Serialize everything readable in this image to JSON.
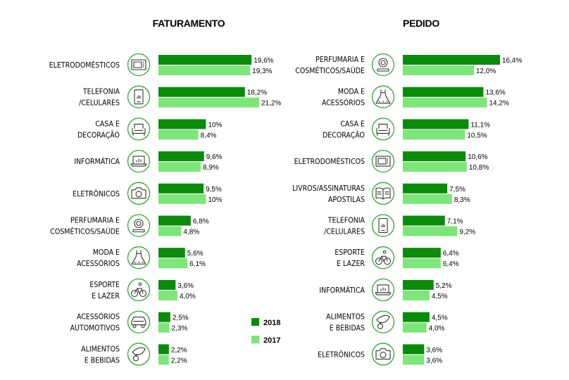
{
  "colors": {
    "y2018": "#0b8a0b",
    "y2017": "#7ee57a",
    "icon": "#2fa82f"
  },
  "legend": [
    {
      "label": "2018",
      "key": "y2018"
    },
    {
      "label": "2017",
      "key": "y2017"
    }
  ],
  "chart_data": [
    {
      "type": "bar",
      "title": "FATURAMENTO",
      "series_names": [
        "2018",
        "2017"
      ],
      "categories": [
        {
          "label": [
            "ELETRODOMÉSTICOS"
          ],
          "icon": "microwave-icon",
          "values": [
            19.6,
            19.3
          ],
          "text": [
            "19,6%",
            "19,3%"
          ]
        },
        {
          "label": [
            "TELEFONIA",
            "/CELULARES"
          ],
          "icon": "smartphone-icon",
          "values": [
            18.2,
            21.2
          ],
          "text": [
            "18,2%",
            "21,2%"
          ]
        },
        {
          "label": [
            "CASA E",
            "DECORAÇÃO"
          ],
          "icon": "armchair-icon",
          "values": [
            10,
            8.4
          ],
          "text": [
            "10%",
            "8,4%"
          ]
        },
        {
          "label": [
            "INFORMÁTICA"
          ],
          "icon": "laptop-icon",
          "values": [
            9.6,
            8.9
          ],
          "text": [
            "9,6%",
            "8,9%"
          ]
        },
        {
          "label": [
            "ELETRÔNICOS"
          ],
          "icon": "camera-icon",
          "values": [
            9.5,
            10
          ],
          "text": [
            "9,5%",
            "10%"
          ]
        },
        {
          "label": [
            "PERFUMARIA E",
            "COSMÉTICOS/SAÚDE"
          ],
          "icon": "cosmetics-icon",
          "values": [
            6.8,
            4.8
          ],
          "text": [
            "6,8%",
            "4,8%"
          ]
        },
        {
          "label": [
            "MODA E",
            "ACESSÓRIOS"
          ],
          "icon": "dress-icon",
          "values": [
            5.6,
            6.1
          ],
          "text": [
            "5,6%",
            "6,1%"
          ]
        },
        {
          "label": [
            "ESPORTE",
            "E LAZER"
          ],
          "icon": "bicycle-icon",
          "values": [
            3.6,
            4.0
          ],
          "text": [
            "3,6%",
            "4,0%"
          ]
        },
        {
          "label": [
            "ACESSÓRIOS",
            "AUTOMOTIVOS"
          ],
          "icon": "car-icon",
          "values": [
            2.5,
            2.3
          ],
          "text": [
            "2,5%",
            "2,3%"
          ]
        },
        {
          "label": [
            "ALIMENTOS",
            "E BEBIDAS"
          ],
          "icon": "food-icon",
          "values": [
            2.2,
            2.2
          ],
          "text": [
            "2,2%",
            "2,2%"
          ]
        }
      ],
      "xlim": [
        0,
        21.2
      ]
    },
    {
      "type": "bar",
      "title": "PEDIDO",
      "series_names": [
        "2018",
        "2017"
      ],
      "categories": [
        {
          "label": [
            "PERFUMARIA E",
            "COSMÉTICOS/SAÚDE"
          ],
          "icon": "cosmetics-icon",
          "values": [
            16.4,
            12.0
          ],
          "text": [
            "16,4%",
            "12,0%"
          ]
        },
        {
          "label": [
            "MODA E",
            "ACESSÓRIOS"
          ],
          "icon": "dress-icon",
          "values": [
            13.6,
            14.2
          ],
          "text": [
            "13,6%",
            "14,2%"
          ]
        },
        {
          "label": [
            "CASA E",
            "DECORAÇÃO"
          ],
          "icon": "armchair-icon",
          "values": [
            11.1,
            10.5
          ],
          "text": [
            "11,1%",
            "10,5%"
          ]
        },
        {
          "label": [
            "ELETRODOMÉSTICOS"
          ],
          "icon": "microwave-icon",
          "values": [
            10.6,
            10.8
          ],
          "text": [
            "10,6%",
            "10,8%"
          ]
        },
        {
          "label": [
            "LIVROS/ASSINATURAS",
            "APOSTILAS"
          ],
          "icon": "book-icon",
          "values": [
            7.5,
            8.3
          ],
          "text": [
            "7,5%",
            "8,3%"
          ]
        },
        {
          "label": [
            "TELEFONIA",
            "/CELULARES"
          ],
          "icon": "smartphone-icon",
          "values": [
            7.1,
            9.2
          ],
          "text": [
            "7,1%",
            "9,2%"
          ]
        },
        {
          "label": [
            "ESPORTE",
            "E LAZER"
          ],
          "icon": "bicycle-icon",
          "values": [
            6.4,
            6.4
          ],
          "text": [
            "6,4%",
            "6,4%"
          ]
        },
        {
          "label": [
            "INFORMÁTICA"
          ],
          "icon": "laptop-icon",
          "values": [
            5.2,
            4.5
          ],
          "text": [
            "5,2%",
            "4,5%"
          ]
        },
        {
          "label": [
            "ALIMENTOS",
            "E BEBIDAS"
          ],
          "icon": "food-icon",
          "values": [
            4.5,
            4.0
          ],
          "text": [
            "4,5%",
            "4,0%"
          ]
        },
        {
          "label": [
            "ELETRÔNICOS"
          ],
          "icon": "camera-icon",
          "values": [
            3.6,
            3.6
          ],
          "text": [
            "3,6%",
            "3,6%"
          ]
        }
      ],
      "xlim": [
        0,
        16.4
      ]
    }
  ]
}
